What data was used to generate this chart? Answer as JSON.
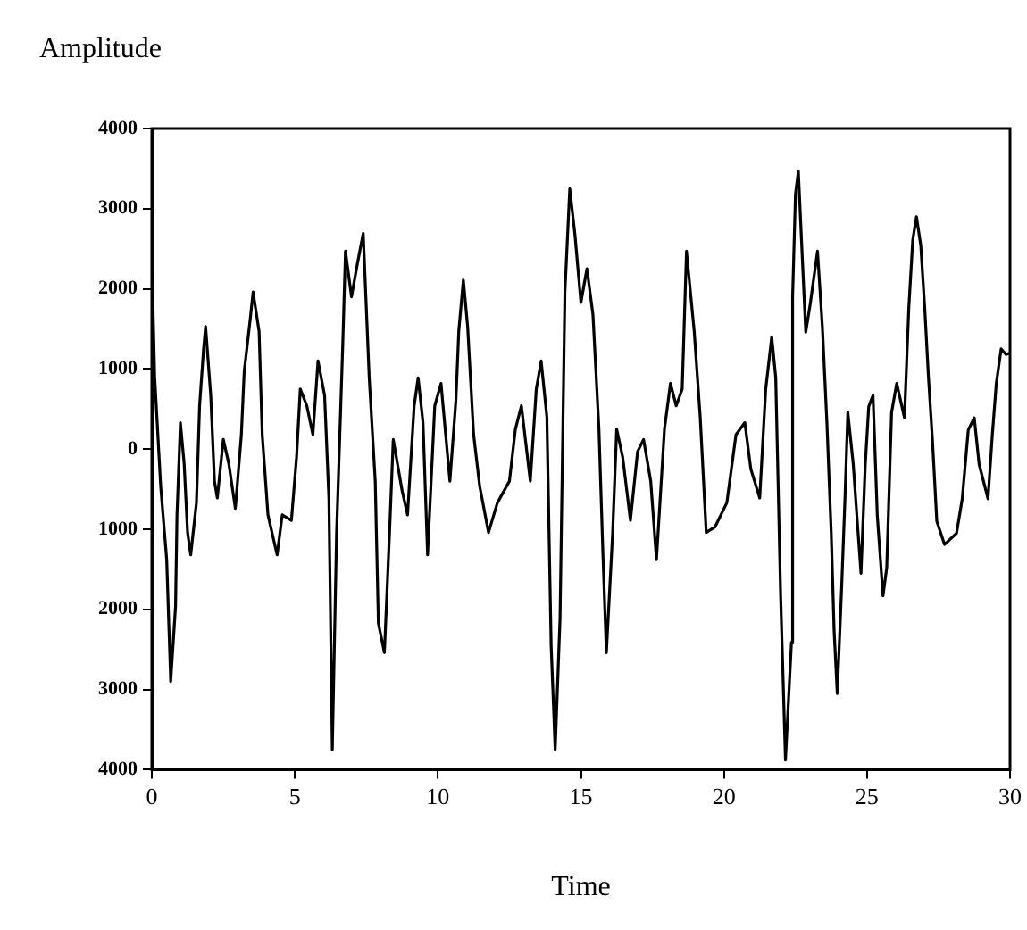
{
  "chart_data": {
    "type": "line",
    "ylabel": "Amplitude",
    "xlabel": "Time",
    "xlim": [
      0,
      30
    ],
    "xticks": [
      0,
      5,
      10,
      15,
      20,
      25,
      30
    ],
    "ylim": [
      -4000,
      4000
    ],
    "yticks": [
      {
        "value": -4000,
        "label": "4000"
      },
      {
        "value": -3000,
        "label": "3000"
      },
      {
        "value": -2000,
        "label": "2000"
      },
      {
        "value": -1000,
        "label": "1000"
      },
      0,
      1000,
      2000,
      3000,
      4000
    ],
    "grid": false,
    "legend": false,
    "marker": "none",
    "line_style": "solid",
    "series": [
      {
        "color": "#000000",
        "x": [
          0,
          0.1,
          0.31,
          0.52,
          0.66,
          0.83,
          0.88,
          1.0,
          1.13,
          1.25,
          1.36,
          1.56,
          1.67,
          1.81,
          1.88,
          2.06,
          2.19,
          2.29,
          2.5,
          2.69,
          2.92,
          3.13,
          3.23,
          3.44,
          3.54,
          3.75,
          3.86,
          4.06,
          4.38,
          4.56,
          4.88,
          5.06,
          5.19,
          5.42,
          5.63,
          5.81,
          6.04,
          6.19,
          6.31,
          6.46,
          6.67,
          6.77,
          6.98,
          7.19,
          7.39,
          7.6,
          7.81,
          7.92,
          8.13,
          8.31,
          8.44,
          8.75,
          8.94,
          9.17,
          9.31,
          9.48,
          9.64,
          9.89,
          10.11,
          10.42,
          10.63,
          10.73,
          10.89,
          11.04,
          11.25,
          11.46,
          11.77,
          12.08,
          12.5,
          12.71,
          12.92,
          13.23,
          13.44,
          13.61,
          13.81,
          13.96,
          14.1,
          14.27,
          14.44,
          14.61,
          14.79,
          15.0,
          15.21,
          15.42,
          15.63,
          15.77,
          15.89,
          16.11,
          16.25,
          16.46,
          16.73,
          16.98,
          17.19,
          17.44,
          17.64,
          17.92,
          18.13,
          18.33,
          18.54,
          18.69,
          18.96,
          19.17,
          19.38,
          19.69,
          20.1,
          20.42,
          20.73,
          20.94,
          21.25,
          21.46,
          21.67,
          21.81,
          21.98,
          22.15,
          22.36,
          22.4,
          22.5,
          22.6,
          22.71,
          22.86,
          23.02,
          23.27,
          23.44,
          23.6,
          23.75,
          23.85,
          23.96,
          24.11,
          24.23,
          24.33,
          24.52,
          24.69,
          24.79,
          24.94,
          25.06,
          25.21,
          25.36,
          25.56,
          25.69,
          25.86,
          26.04,
          26.31,
          26.46,
          26.6,
          26.73,
          26.88,
          27.02,
          27.15,
          27.29,
          27.44,
          27.71,
          28.13,
          28.33,
          28.54,
          28.75,
          28.92,
          29.23,
          29.38,
          29.52,
          29.69,
          29.86,
          30
        ],
        "values": [
          2400,
          900,
          -460,
          -1380,
          -2900,
          -1960,
          -820,
          330,
          -180,
          -1040,
          -1320,
          -670,
          540,
          1250,
          1530,
          670,
          -400,
          -610,
          120,
          -180,
          -740,
          180,
          970,
          1620,
          1960,
          1470,
          180,
          -820,
          -1320,
          -820,
          -890,
          -100,
          750,
          540,
          180,
          1100,
          670,
          -610,
          -3750,
          -1040,
          1250,
          2470,
          1900,
          2320,
          2690,
          890,
          -400,
          -2170,
          -2540,
          -1040,
          120,
          -520,
          -820,
          540,
          890,
          330,
          -1320,
          540,
          820,
          -400,
          610,
          1470,
          2110,
          1530,
          180,
          -460,
          -1040,
          -670,
          -400,
          250,
          540,
          -400,
          750,
          1100,
          400,
          -2460,
          -3750,
          -2110,
          1960,
          3250,
          2680,
          1830,
          2250,
          1680,
          250,
          -1320,
          -2540,
          -1040,
          250,
          -100,
          -890,
          -30,
          120,
          -400,
          -1380,
          250,
          820,
          540,
          750,
          2470,
          1470,
          400,
          -1040,
          -970,
          -670,
          180,
          330,
          -250,
          -610,
          750,
          1400,
          890,
          -1810,
          -3880,
          -2410,
          1900,
          3180,
          3470,
          2610,
          1460,
          1820,
          2470,
          1530,
          320,
          -1050,
          -2260,
          -3050,
          -1760,
          -620,
          460,
          -190,
          -1050,
          -1550,
          -190,
          530,
          670,
          -830,
          -1830,
          -1480,
          460,
          820,
          390,
          1750,
          2610,
          2900,
          2540,
          1750,
          890,
          100,
          -900,
          -1190,
          -1050,
          -620,
          240,
          390,
          -190,
          -620,
          170,
          820,
          1250,
          1180,
          1200
        ]
      }
    ]
  }
}
